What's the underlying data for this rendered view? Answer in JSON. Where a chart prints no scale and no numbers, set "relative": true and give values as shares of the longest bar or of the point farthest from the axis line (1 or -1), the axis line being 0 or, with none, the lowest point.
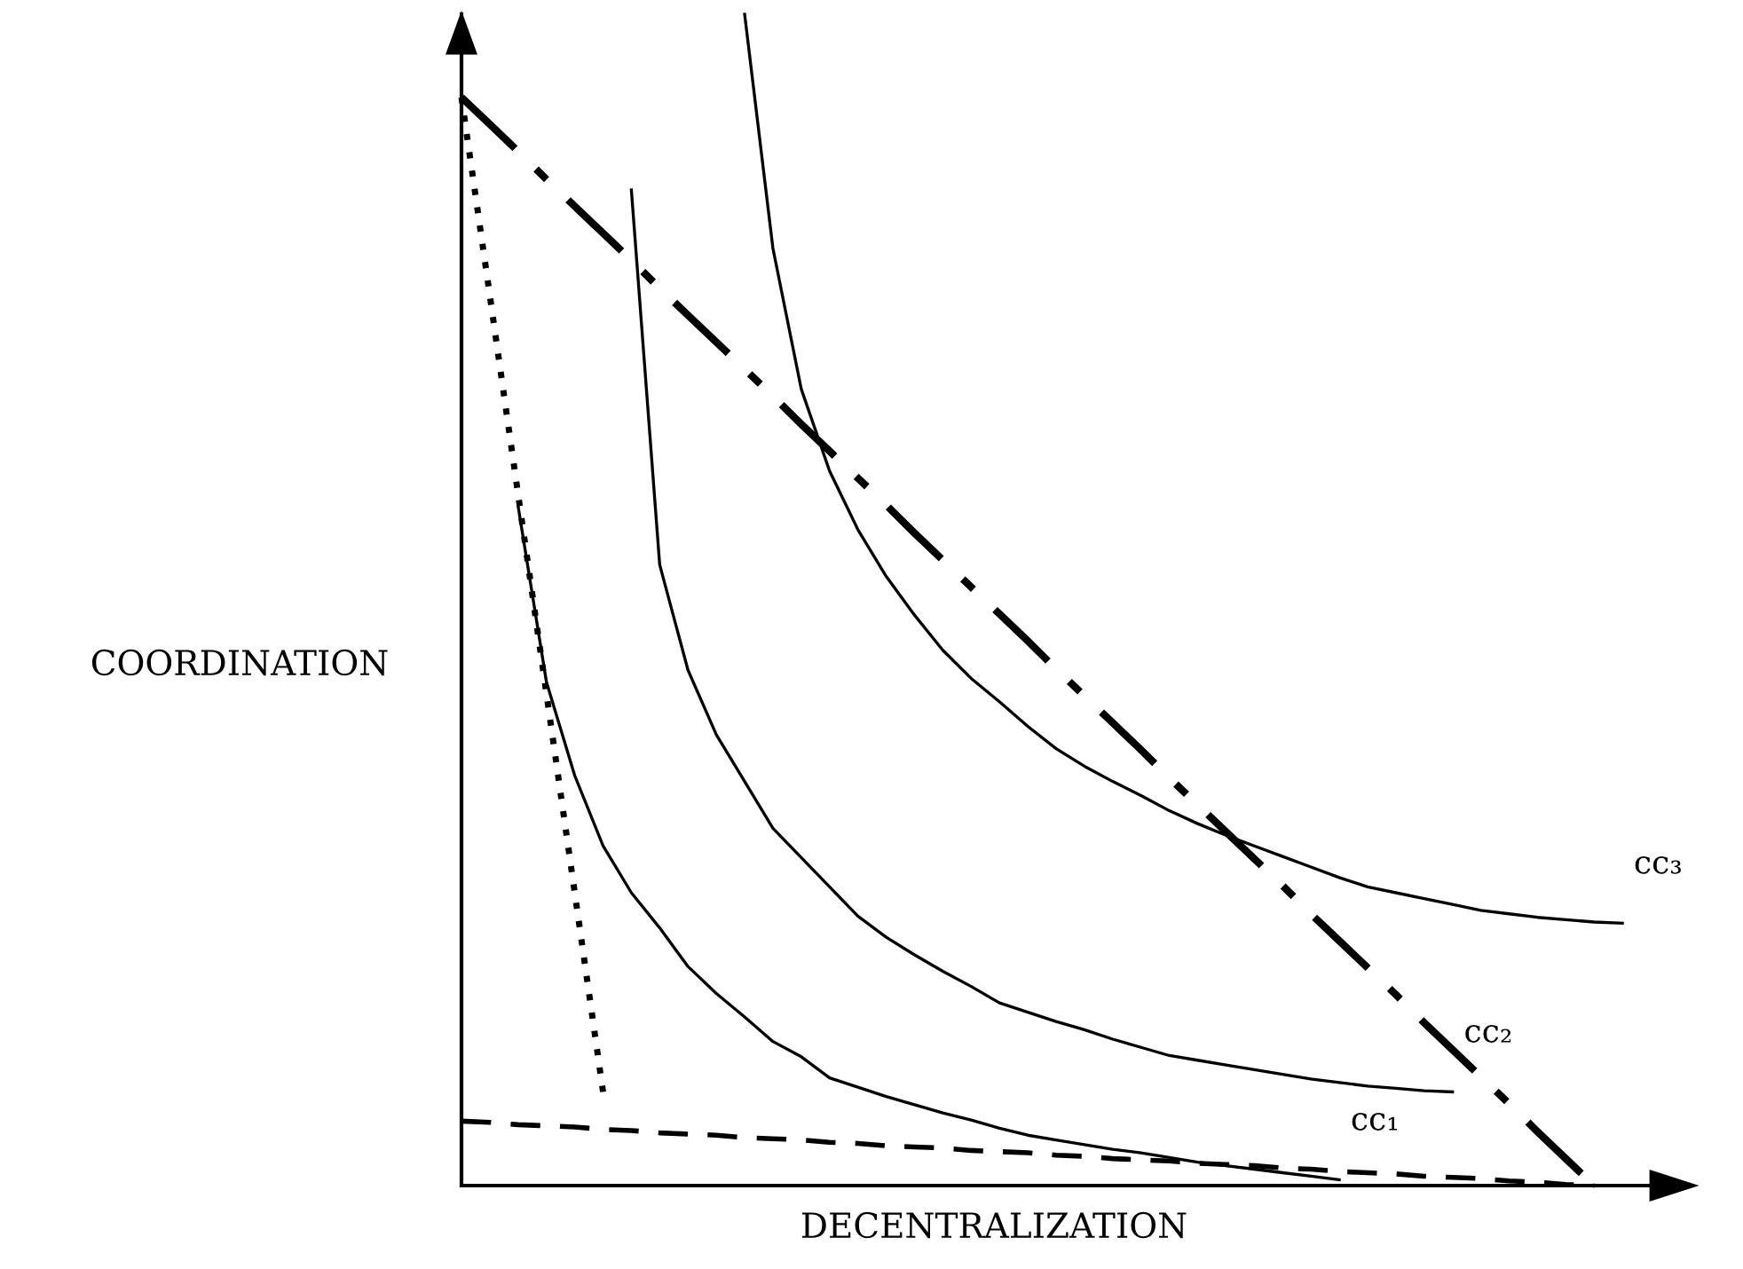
{
  "chart_data": {
    "type": "line",
    "relative": true,
    "xlabel": "DECENTRALIZATION",
    "ylabel": "COORDINATION",
    "categories": [
      null,
      null,
      null,
      null,
      null,
      null,
      null,
      null,
      null,
      null,
      null,
      null,
      null,
      null,
      null,
      null,
      null,
      null,
      null,
      null,
      null,
      null,
      null,
      null,
      null,
      null,
      null,
      null,
      null,
      null,
      null,
      null,
      null,
      null,
      null,
      null,
      null,
      null,
      null,
      null,
      null,
      null,
      null
    ],
    "series": [
      {
        "name": "cc₁",
        "color": "#000000",
        "line_style": "solid",
        "values": [
          null,
          null,
          0.58,
          0.43,
          0.35,
          0.29,
          0.25,
          0.22,
          0.187,
          0.164,
          0.144,
          0.123,
          0.11,
          0.092,
          0.084,
          0.076,
          0.069,
          0.062,
          0.056,
          0.049,
          0.043,
          0.039,
          0.035,
          0.031,
          0.028,
          0.024,
          0.02,
          0.017,
          0.014,
          0.011,
          0.008,
          0.005,
          null,
          null,
          null,
          null,
          null,
          null,
          null,
          null,
          null,
          null,
          null
        ]
      },
      {
        "name": "cc₂",
        "color": "#000000",
        "line_style": "solid",
        "values": [
          null,
          null,
          null,
          null,
          null,
          null,
          0.85,
          0.53,
          0.44,
          0.385,
          0.345,
          0.305,
          0.28,
          0.255,
          0.23,
          0.212,
          0.197,
          0.183,
          0.17,
          0.156,
          0.148,
          0.14,
          0.133,
          0.125,
          0.118,
          0.111,
          0.107,
          0.103,
          0.099,
          0.095,
          0.091,
          0.088,
          0.085,
          0.083,
          0.081,
          0.08,
          null,
          null,
          null,
          null,
          null,
          null,
          null
        ]
      },
      {
        "name": "cc₃",
        "color": "#000000",
        "line_style": "solid",
        "values": [
          null,
          null,
          null,
          null,
          null,
          null,
          null,
          null,
          null,
          null,
          1.0,
          0.8,
          0.68,
          0.61,
          0.56,
          0.52,
          0.487,
          0.457,
          0.433,
          0.413,
          0.392,
          0.373,
          0.358,
          0.345,
          0.333,
          0.32,
          0.309,
          0.299,
          0.29,
          0.281,
          0.272,
          0.263,
          0.255,
          0.25,
          0.245,
          0.24,
          0.235,
          0.232,
          0.229,
          0.227,
          0.225,
          0.224,
          null
        ]
      },
      {
        "color": "#000000",
        "line_style": "dashdot",
        "values": [
          0.929,
          0.906,
          0.883,
          0.859,
          0.836,
          0.813,
          0.79,
          0.766,
          0.743,
          0.72,
          0.697,
          0.674,
          0.65,
          0.627,
          0.604,
          0.581,
          0.557,
          0.534,
          0.511,
          0.488,
          0.465,
          0.441,
          0.418,
          0.395,
          0.372,
          0.348,
          0.325,
          0.302,
          0.279,
          0.256,
          0.232,
          0.209,
          0.186,
          0.163,
          0.139,
          0.116,
          0.093,
          0.07,
          0.046,
          0.023,
          0.0,
          null,
          null
        ]
      },
      {
        "color": "#000000",
        "line_style": "dotted",
        "values": [
          0.929,
          0.76,
          0.59,
          0.42,
          0.25,
          0.08,
          null,
          null,
          null,
          null,
          null,
          null,
          null,
          null,
          null,
          null,
          null,
          null,
          null,
          null,
          null,
          null,
          null,
          null,
          null,
          null,
          null,
          null,
          null,
          null,
          null,
          null,
          null,
          null,
          null,
          null,
          null,
          null,
          null,
          null,
          null,
          null,
          null
        ]
      },
      {
        "color": "#000000",
        "line_style": "dashed",
        "values": [
          0.055,
          0.054,
          0.052,
          0.051,
          0.05,
          0.048,
          0.047,
          0.045,
          0.044,
          0.043,
          0.041,
          0.04,
          0.039,
          0.037,
          0.036,
          0.034,
          0.033,
          0.032,
          0.03,
          0.029,
          0.028,
          0.026,
          0.025,
          0.023,
          0.022,
          0.021,
          0.019,
          0.018,
          0.017,
          0.015,
          0.014,
          0.012,
          0.011,
          0.01,
          0.008,
          0.007,
          0.006,
          0.004,
          0.003,
          0.001,
          0.0,
          null,
          null
        ]
      }
    ]
  }
}
